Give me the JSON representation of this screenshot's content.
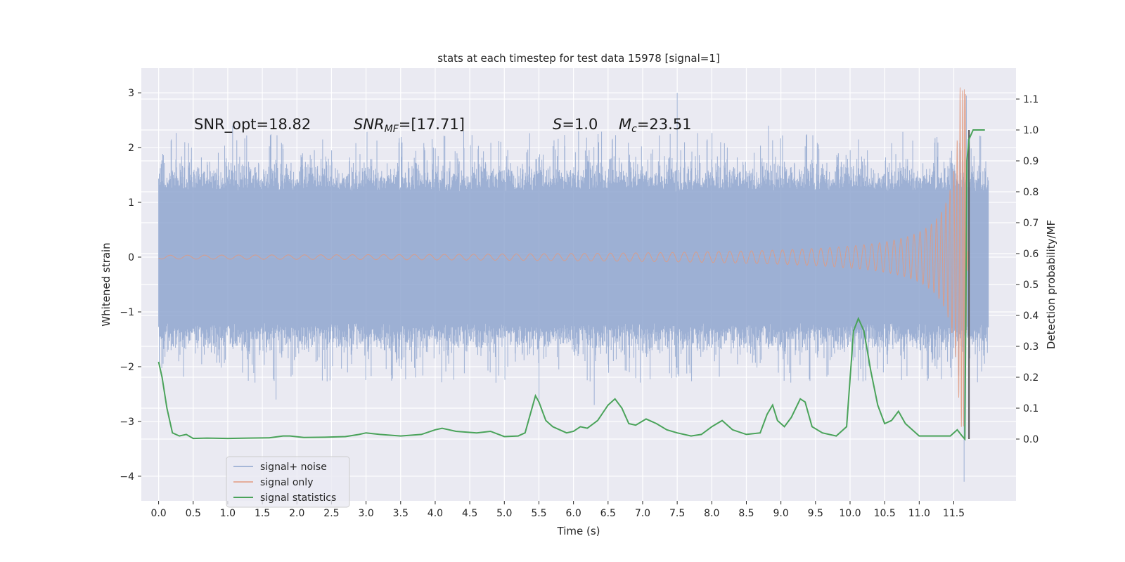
{
  "chart_data": {
    "type": "line",
    "title": "stats at each timestep for test data 15978 [signal=1]",
    "xlabel": "Time (s)",
    "ylabel_left": "Whitened strain",
    "ylabel_right": "Detection probability/MF",
    "xlim": [
      -0.25,
      12.4
    ],
    "ylim_left": [
      -4.45,
      3.45
    ],
    "ylim_right": [
      -0.2,
      1.2
    ],
    "x_ticks": [
      0.0,
      0.5,
      1.0,
      1.5,
      2.0,
      2.5,
      3.0,
      3.5,
      4.0,
      4.5,
      5.0,
      5.5,
      6.0,
      6.5,
      7.0,
      7.5,
      8.0,
      8.5,
      9.0,
      9.5,
      10.0,
      10.5,
      11.0,
      11.5
    ],
    "x_tick_labels": [
      "0.0",
      "0.5",
      "1.0",
      "1.5",
      "2.0",
      "2.5",
      "3.0",
      "3.5",
      "4.0",
      "4.5",
      "5.0",
      "5.5",
      "6.0",
      "6.5",
      "7.0",
      "7.5",
      "8.0",
      "8.5",
      "9.0",
      "9.5",
      "10.0",
      "10.5",
      "11.0",
      "11.5"
    ],
    "y_left_ticks": [
      3,
      2,
      1,
      0,
      -1,
      -2,
      -3,
      -4
    ],
    "y_left_tick_labels": [
      "3",
      "2",
      "1",
      "0",
      "−1",
      "−2",
      "−3",
      "−4"
    ],
    "y_right_ticks": [
      1.1,
      1.0,
      0.9,
      0.8,
      0.7,
      0.6,
      0.5,
      0.4,
      0.3,
      0.2,
      0.1,
      0.0
    ],
    "y_right_tick_labels": [
      "1.1",
      "1.0",
      "0.9",
      "0.8",
      "0.7",
      "0.6",
      "0.5",
      "0.4",
      "0.3",
      "0.2",
      "0.1",
      "0.0"
    ],
    "annotations": {
      "snr_opt": "SNR_opt=18.82",
      "snr_mf_main": "SNR",
      "snr_mf_sub": "MF",
      "snr_mf_value": "=[17.71]",
      "s_main": "S",
      "s_value": "=1.0",
      "mc_main": "M",
      "mc_sub": "c",
      "mc_value": "=23.51"
    },
    "legend": {
      "location": "lower-left",
      "entries": [
        "signal+ noise",
        "signal only",
        "signal statistics"
      ]
    },
    "series": [
      {
        "name": "signal+ noise",
        "axis": "left",
        "style": "band",
        "x_range": [
          0.0,
          12.0
        ],
        "envelope_abs": 1.2,
        "peak_abs": 2.0,
        "extremes": [
          [
            1.7,
            -2.6
          ],
          [
            5.5,
            -2.6
          ],
          [
            6.3,
            -2.7
          ],
          [
            7.5,
            3.0
          ],
          [
            11.65,
            -4.1
          ],
          [
            11.68,
            2.95
          ]
        ]
      },
      {
        "name": "signal only",
        "axis": "left",
        "style": "chirp",
        "x_range": [
          0.0,
          11.72
        ],
        "merger_time": 11.67,
        "merger_peak": 3.1,
        "merger_trough": -3.0
      },
      {
        "name": "signal statistics",
        "axis": "right",
        "x": [
          0.0,
          0.05,
          0.12,
          0.2,
          0.3,
          0.4,
          0.5,
          0.7,
          1.0,
          1.3,
          1.6,
          1.8,
          1.9,
          2.1,
          2.4,
          2.7,
          2.9,
          3.0,
          3.2,
          3.5,
          3.8,
          4.0,
          4.1,
          4.3,
          4.6,
          4.8,
          5.0,
          5.2,
          5.3,
          5.4,
          5.45,
          5.5,
          5.6,
          5.7,
          5.8,
          5.9,
          6.0,
          6.1,
          6.2,
          6.35,
          6.5,
          6.6,
          6.7,
          6.8,
          6.9,
          7.05,
          7.2,
          7.35,
          7.5,
          7.7,
          7.85,
          8.0,
          8.15,
          8.3,
          8.5,
          8.7,
          8.8,
          8.88,
          8.95,
          9.05,
          9.15,
          9.28,
          9.35,
          9.45,
          9.6,
          9.8,
          9.95,
          10.05,
          10.12,
          10.2,
          10.3,
          10.4,
          10.5,
          10.6,
          10.7,
          10.8,
          11.0,
          11.3,
          11.45,
          11.55,
          11.62,
          11.66,
          11.69,
          11.72,
          11.78,
          11.82,
          11.88,
          11.95
        ],
        "values": [
          0.25,
          0.2,
          0.1,
          0.02,
          0.01,
          0.015,
          0.002,
          0.003,
          0.002,
          0.003,
          0.004,
          0.01,
          0.01,
          0.005,
          0.006,
          0.008,
          0.015,
          0.02,
          0.015,
          0.01,
          0.015,
          0.03,
          0.035,
          0.025,
          0.02,
          0.025,
          0.008,
          0.01,
          0.02,
          0.1,
          0.14,
          0.12,
          0.06,
          0.04,
          0.03,
          0.02,
          0.025,
          0.04,
          0.035,
          0.06,
          0.11,
          0.13,
          0.1,
          0.05,
          0.045,
          0.065,
          0.05,
          0.03,
          0.02,
          0.01,
          0.015,
          0.04,
          0.06,
          0.03,
          0.015,
          0.02,
          0.08,
          0.11,
          0.06,
          0.04,
          0.07,
          0.13,
          0.12,
          0.04,
          0.02,
          0.01,
          0.04,
          0.35,
          0.39,
          0.35,
          0.22,
          0.11,
          0.05,
          0.06,
          0.09,
          0.05,
          0.01,
          0.01,
          0.01,
          0.03,
          0.01,
          0.0,
          0.9,
          0.97,
          1.0,
          1.0,
          1.0,
          1.0
        ]
      }
    ],
    "colors": {
      "noise": "#8fa6cf",
      "signal": "#e29a7f",
      "stats": "#4aa35a",
      "plot_bg": "#eaeaf2",
      "grid": "#ffffff",
      "vline": "#555555"
    }
  }
}
